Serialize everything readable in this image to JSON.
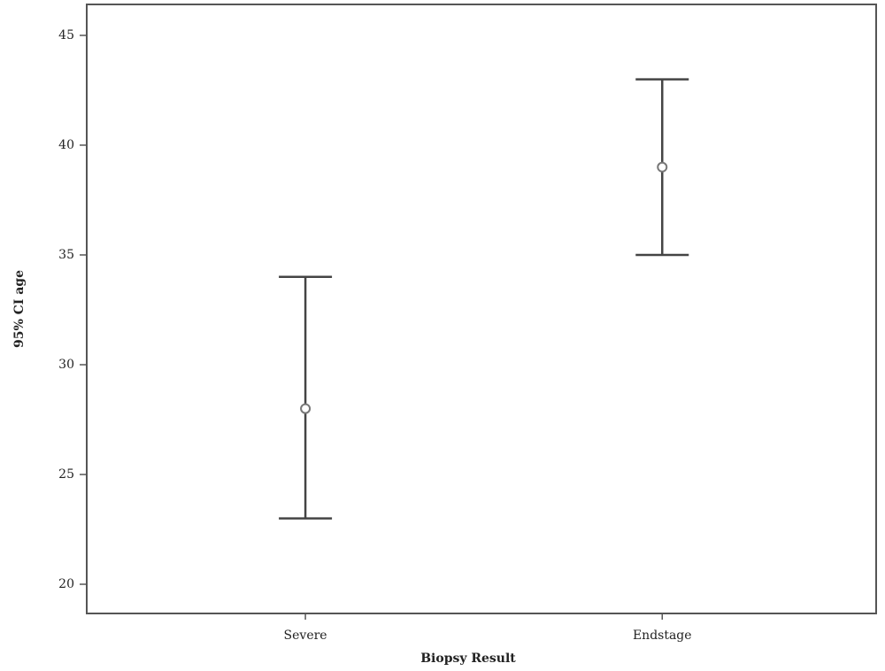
{
  "chart_data": {
    "type": "errorbar",
    "x_label": "Biopsy Result",
    "y_label": "95% CI age",
    "categories": [
      "Severe",
      "Endstage"
    ],
    "values": [
      28,
      39
    ],
    "lower": [
      23,
      35
    ],
    "upper": [
      34,
      43
    ],
    "color": "#444444",
    "ylim": [
      18.67,
      46.41
    ],
    "yticks": [
      20,
      25,
      30,
      35,
      40,
      45
    ]
  }
}
